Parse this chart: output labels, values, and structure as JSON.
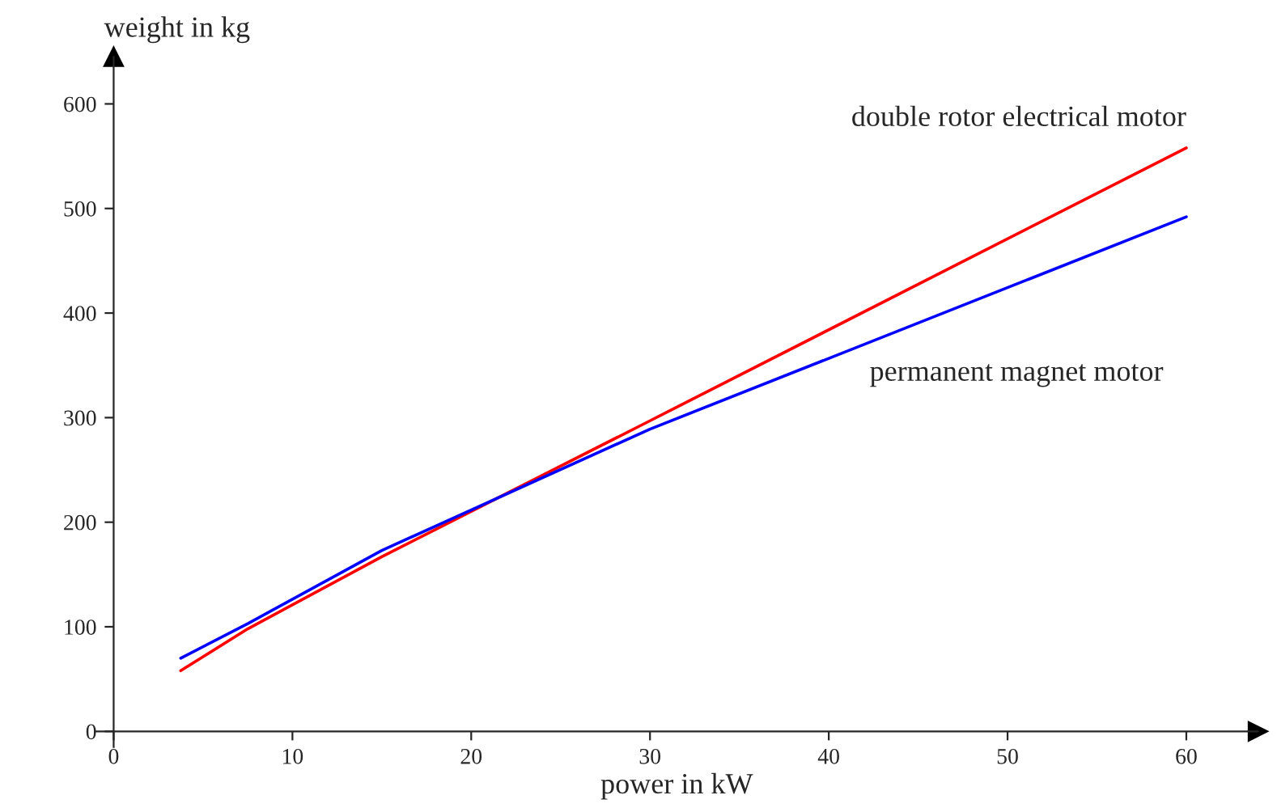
{
  "chart_data": {
    "type": "line",
    "xlabel": "power in kW",
    "ylabel": "weight in kg",
    "xlim": [
      -1,
      64
    ],
    "ylim": [
      -15,
      645
    ],
    "xticks": [
      0,
      10,
      20,
      30,
      40,
      50,
      60
    ],
    "yticks": [
      0,
      100,
      200,
      300,
      400,
      500,
      600
    ],
    "grid": false,
    "legend": false,
    "marker": "none",
    "line_style": "solid",
    "series": [
      {
        "name": "double rotor electrical motor",
        "color": "#ff0000",
        "x": [
          3.75,
          7.5,
          15,
          30,
          60
        ],
        "values": [
          58,
          98,
          167,
          297,
          558
        ]
      },
      {
        "name": "permanent magnet motor",
        "color": "#0000ff",
        "x": [
          3.75,
          7.5,
          15,
          30,
          60
        ],
        "values": [
          70,
          103,
          173,
          289,
          492
        ]
      }
    ]
  }
}
